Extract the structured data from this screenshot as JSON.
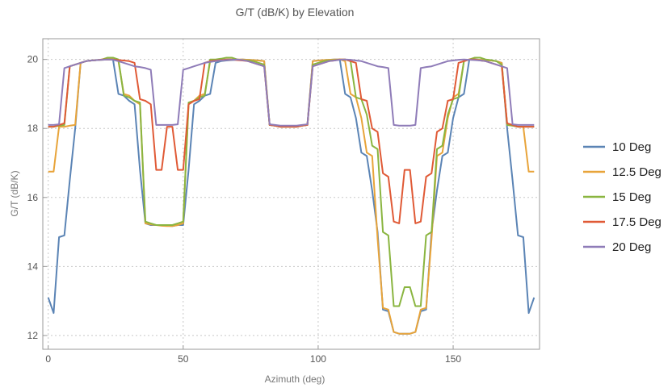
{
  "chart_data": {
    "type": "line",
    "title": "G/T (dB/K) by Elevation",
    "xlabel": "Azimuth (deg)",
    "ylabel": "G/T (dB/K)",
    "xlim": [
      -2,
      182
    ],
    "ylim": [
      11.6,
      20.6
    ],
    "x_ticks": [
      0,
      50,
      100,
      150
    ],
    "y_ticks": [
      12,
      14,
      16,
      18,
      20
    ],
    "grid": true,
    "legend_position": "right",
    "x": [
      0,
      2,
      4,
      6,
      8,
      10,
      12,
      14,
      16,
      18,
      20,
      22,
      24,
      26,
      28,
      30,
      32,
      34,
      36,
      38,
      40,
      42,
      44,
      46,
      48,
      50,
      52,
      54,
      56,
      58,
      60,
      62,
      64,
      66,
      68,
      70,
      72,
      74,
      76,
      78,
      80,
      82,
      84,
      86,
      88,
      90,
      92,
      94,
      96,
      98,
      100,
      102,
      104,
      106,
      108,
      110,
      112,
      114,
      116,
      118,
      120,
      122,
      124,
      126,
      128,
      130,
      132,
      134,
      136,
      138,
      140,
      142,
      144,
      146,
      148,
      150,
      152,
      154,
      156,
      158,
      160,
      162,
      164,
      166,
      168,
      170,
      172,
      174,
      176,
      178,
      180
    ],
    "series": [
      {
        "name": "10 Deg",
        "color": "#5b84b5",
        "values": [
          13.1,
          12.65,
          14.85,
          14.9,
          16.5,
          18.0,
          19.9,
          19.95,
          19.97,
          19.98,
          19.99,
          20.0,
          20.0,
          19.0,
          18.95,
          18.8,
          18.7,
          16.8,
          15.25,
          15.2,
          15.2,
          15.2,
          15.18,
          15.17,
          15.2,
          15.2,
          16.8,
          18.7,
          18.8,
          18.95,
          19.0,
          19.9,
          19.95,
          19.97,
          19.98,
          19.99,
          20.0,
          19.99,
          19.98,
          19.97,
          19.95,
          18.1,
          18.08,
          18.05,
          18.05,
          18.05,
          18.05,
          18.08,
          18.1,
          19.95,
          19.97,
          19.98,
          19.99,
          20.0,
          20.0,
          19.0,
          18.9,
          18.3,
          17.3,
          17.2,
          16.2,
          15.0,
          12.75,
          12.7,
          12.1,
          12.05,
          12.05,
          12.05,
          12.1,
          12.7,
          12.75,
          15.0,
          16.2,
          17.2,
          17.3,
          18.3,
          18.9,
          19.0,
          20.0,
          20.0,
          19.99,
          19.98,
          19.97,
          19.95,
          19.9,
          18.0,
          16.5,
          14.9,
          14.85,
          12.65,
          13.1
        ]
      },
      {
        "name": "12.5 Deg",
        "color": "#e8a43a",
        "values": [
          16.75,
          16.75,
          18.05,
          18.05,
          18.08,
          18.1,
          19.9,
          19.95,
          19.97,
          19.98,
          19.99,
          20.0,
          20.0,
          19.95,
          19.0,
          18.95,
          18.8,
          18.7,
          15.25,
          15.22,
          15.2,
          15.18,
          15.17,
          15.17,
          15.2,
          15.25,
          18.7,
          18.8,
          18.95,
          19.0,
          19.95,
          19.95,
          19.97,
          19.98,
          19.99,
          20.0,
          20.0,
          19.99,
          19.98,
          19.97,
          19.95,
          18.1,
          18.08,
          18.05,
          18.05,
          18.05,
          18.05,
          18.08,
          18.1,
          19.95,
          19.97,
          19.98,
          19.99,
          20.0,
          20.0,
          19.95,
          19.0,
          18.9,
          18.3,
          17.3,
          17.2,
          14.8,
          12.8,
          12.75,
          12.1,
          12.05,
          12.05,
          12.05,
          12.1,
          12.75,
          12.8,
          14.8,
          17.2,
          17.3,
          18.3,
          18.9,
          19.0,
          19.95,
          20.0,
          20.0,
          19.99,
          19.98,
          19.97,
          19.95,
          19.9,
          18.1,
          18.08,
          18.05,
          18.05,
          16.75,
          16.75
        ]
      },
      {
        "name": "15 Deg",
        "color": "#8ab540",
        "values": [
          18.05,
          18.05,
          18.08,
          18.1,
          19.8,
          19.85,
          19.9,
          19.95,
          19.97,
          19.98,
          20.0,
          20.05,
          20.05,
          20.0,
          18.95,
          18.9,
          18.8,
          18.75,
          15.3,
          15.25,
          15.2,
          15.2,
          15.2,
          15.2,
          15.25,
          15.3,
          18.75,
          18.8,
          18.9,
          18.95,
          20.0,
          20.0,
          20.02,
          20.05,
          20.05,
          20.0,
          19.98,
          19.97,
          19.95,
          19.9,
          19.85,
          18.1,
          18.08,
          18.05,
          18.05,
          18.05,
          18.05,
          18.08,
          18.1,
          19.85,
          19.9,
          19.95,
          19.97,
          19.98,
          20.0,
          20.0,
          19.95,
          18.9,
          18.85,
          18.4,
          17.5,
          17.4,
          15.0,
          14.9,
          12.85,
          12.85,
          13.4,
          13.4,
          12.85,
          12.85,
          14.9,
          15.0,
          17.4,
          17.5,
          18.4,
          18.85,
          18.9,
          19.95,
          20.0,
          20.05,
          20.05,
          20.0,
          19.98,
          19.95,
          19.85,
          18.1,
          18.08,
          18.05,
          18.05,
          18.05,
          18.05
        ]
      },
      {
        "name": "17.5 Deg",
        "color": "#e05a36",
        "values": [
          18.05,
          18.05,
          18.1,
          18.15,
          19.8,
          19.85,
          19.9,
          19.95,
          19.97,
          19.98,
          20.0,
          20.0,
          20.0,
          19.98,
          19.97,
          19.95,
          19.9,
          18.85,
          18.8,
          18.7,
          16.8,
          16.8,
          18.05,
          18.05,
          16.8,
          16.8,
          18.7,
          18.8,
          18.85,
          19.9,
          19.95,
          19.97,
          19.98,
          20.0,
          20.0,
          19.98,
          19.97,
          19.95,
          19.9,
          19.85,
          19.8,
          18.1,
          18.08,
          18.05,
          18.05,
          18.05,
          18.05,
          18.08,
          18.1,
          19.8,
          19.85,
          19.9,
          19.95,
          19.97,
          20.0,
          20.0,
          19.95,
          19.9,
          18.85,
          18.8,
          18.0,
          17.9,
          16.7,
          16.6,
          15.3,
          15.25,
          16.8,
          16.8,
          15.25,
          15.3,
          16.6,
          16.7,
          17.9,
          18.0,
          18.8,
          18.85,
          19.9,
          19.95,
          20.0,
          20.0,
          19.97,
          19.95,
          19.9,
          19.85,
          19.8,
          18.15,
          18.1,
          18.05,
          18.05,
          18.05,
          18.05
        ]
      },
      {
        "name": "20 Deg",
        "color": "#8f7cb8",
        "values": [
          18.1,
          18.1,
          18.12,
          19.75,
          19.8,
          19.85,
          19.9,
          19.95,
          19.97,
          19.98,
          19.99,
          20.0,
          19.99,
          19.95,
          19.9,
          19.85,
          19.8,
          19.78,
          19.75,
          19.7,
          18.1,
          18.1,
          18.1,
          18.1,
          18.12,
          19.7,
          19.75,
          19.8,
          19.85,
          19.9,
          19.93,
          19.95,
          19.97,
          19.98,
          19.99,
          20.0,
          19.98,
          19.95,
          19.9,
          19.85,
          19.8,
          18.12,
          18.1,
          18.08,
          18.08,
          18.08,
          18.08,
          18.1,
          18.12,
          19.8,
          19.85,
          19.9,
          19.95,
          19.97,
          19.99,
          20.0,
          19.99,
          19.97,
          19.95,
          19.9,
          19.85,
          19.8,
          19.78,
          19.75,
          18.1,
          18.08,
          18.08,
          18.08,
          18.1,
          19.75,
          19.78,
          19.8,
          19.85,
          19.9,
          19.95,
          19.97,
          19.99,
          20.0,
          19.99,
          19.98,
          19.97,
          19.95,
          19.9,
          19.85,
          19.8,
          19.75,
          18.12,
          18.1,
          18.1,
          18.1,
          18.1
        ]
      }
    ]
  }
}
